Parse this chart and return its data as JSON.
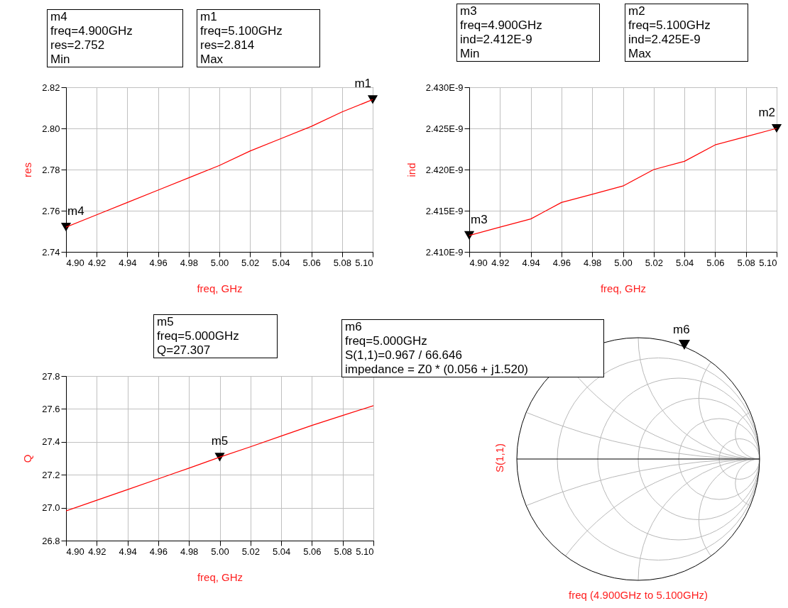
{
  "chart_data": [
    {
      "type": "line",
      "xlabel": "freq, GHz",
      "ylabel": "res",
      "x": [
        4.9,
        4.92,
        4.94,
        4.96,
        4.98,
        5.0,
        5.02,
        5.04,
        5.06,
        5.08,
        5.1
      ],
      "series": [
        {
          "color": "#ff0000",
          "values": [
            2.752,
            2.758,
            2.764,
            2.77,
            2.776,
            2.782,
            2.789,
            2.795,
            2.801,
            2.808,
            2.814
          ]
        }
      ],
      "xlim": [
        4.9,
        5.1
      ],
      "xticks": [
        {
          "value": 4.9,
          "label": "4.90"
        },
        4.92,
        4.94,
        4.96,
        4.98,
        {
          "value": 5.0,
          "label": "5.00"
        },
        5.02,
        5.04,
        5.06,
        5.08,
        {
          "value": 5.1,
          "label": "5.10"
        }
      ],
      "ylim": [
        2.74,
        2.82
      ],
      "yticks": [
        2.74,
        2.76,
        2.78,
        {
          "value": 2.8,
          "label": "2.80"
        },
        2.82
      ],
      "grid": true,
      "legend": false,
      "marker": "none",
      "line_style": "solid",
      "annotations": [
        {
          "text": "m4",
          "x": 4.9,
          "y": 2.752
        },
        {
          "text": "m1",
          "x": 5.1,
          "y": 2.814
        },
        "m4\nfreq=4.900GHz\nres=2.752\nMin",
        "m1\nfreq=5.100GHz\nres=2.814\nMax"
      ]
    },
    {
      "type": "line",
      "xlabel": "freq, GHz",
      "ylabel": "ind",
      "x": [
        4.9,
        4.92,
        4.94,
        4.96,
        4.98,
        5.0,
        5.02,
        5.04,
        5.06,
        5.08,
        5.1
      ],
      "series": [
        {
          "color": "#ff0000",
          "values": [
            2.412e-09,
            2.413e-09,
            2.414e-09,
            2.416e-09,
            2.417e-09,
            2.418e-09,
            2.42e-09,
            2.421e-09,
            2.423e-09,
            2.424e-09,
            2.425e-09
          ]
        }
      ],
      "xlim": [
        4.9,
        5.1
      ],
      "xticks": [
        {
          "value": 4.9,
          "label": "4.90"
        },
        4.92,
        4.94,
        4.96,
        4.98,
        {
          "value": 5.0,
          "label": "5.00"
        },
        5.02,
        5.04,
        5.06,
        5.08,
        {
          "value": 5.1,
          "label": "5.10"
        }
      ],
      "ylim": [
        2.41e-09,
        2.43e-09
      ],
      "yticks": [
        {
          "value": 2.41e-09,
          "label": "2.410E-9"
        },
        {
          "value": 2.415e-09,
          "label": "2.415E-9"
        },
        {
          "value": 2.42e-09,
          "label": "2.420E-9"
        },
        {
          "value": 2.425e-09,
          "label": "2.425E-9"
        },
        {
          "value": 2.43e-09,
          "label": "2.430E-9"
        }
      ],
      "grid": true,
      "legend": false,
      "marker": "none",
      "line_style": "solid",
      "annotations": [
        {
          "text": "m3",
          "x": 4.9,
          "y": 2.412e-09
        },
        {
          "text": "m2",
          "x": 5.1,
          "y": 2.425e-09
        },
        "m3\nfreq=4.900GHz\nind=2.412E-9\nMin",
        "m2\nfreq=5.100GHz\nind=2.425E-9\nMax"
      ]
    },
    {
      "type": "line",
      "xlabel": "freq, GHz",
      "ylabel": "Q",
      "x": [
        4.9,
        4.92,
        4.94,
        4.96,
        4.98,
        5.0,
        5.02,
        5.04,
        5.06,
        5.08,
        5.1
      ],
      "series": [
        {
          "color": "#ff0000",
          "values": [
            26.98,
            27.045,
            27.11,
            27.175,
            27.24,
            27.307,
            27.37,
            27.435,
            27.5,
            27.56,
            27.62
          ]
        }
      ],
      "xlim": [
        4.9,
        5.1
      ],
      "xticks": [
        {
          "value": 4.9,
          "label": "4.90"
        },
        4.92,
        4.94,
        4.96,
        4.98,
        {
          "value": 5.0,
          "label": "5.00"
        },
        5.02,
        5.04,
        5.06,
        5.08,
        {
          "value": 5.1,
          "label": "5.10"
        }
      ],
      "ylim": [
        26.8,
        27.8
      ],
      "yticks": [
        26.8,
        {
          "value": 27.0,
          "label": "27.0"
        },
        27.2,
        27.4,
        27.6,
        27.8
      ],
      "grid": true,
      "legend": false,
      "marker": "none",
      "line_style": "solid",
      "annotations": [
        {
          "text": "m5",
          "x": 5.0,
          "y": 27.307
        },
        "m5\nfreq=5.000GHz\nQ=27.307"
      ]
    },
    {
      "type": "other",
      "xlabel": "freq (4.900GHz to 5.100GHz)",
      "ylabel": "S(1,1)",
      "annotations": [
        "m6",
        "m6\nfreq=5.000GHz\nS(1,1)=0.967 / 66.646\nimpedance = Z0 * (0.056 + j1.520)"
      ]
    }
  ]
}
